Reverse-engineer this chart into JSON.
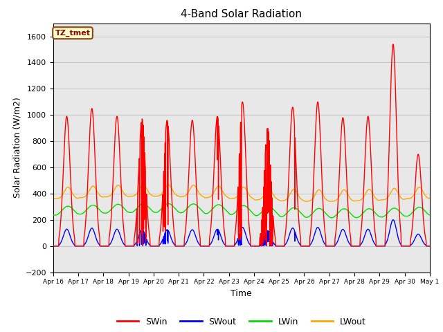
{
  "title": "4-Band Solar Radiation",
  "xlabel": "Time",
  "ylabel": "Solar Radiation (W/m2)",
  "annotation_text": "TZ_tmet",
  "annotation_facecolor": "#ffffcc",
  "annotation_edgecolor": "#8B4513",
  "annotation_textcolor": "#8B0000",
  "ylim": [
    -200,
    1700
  ],
  "xlim": [
    0,
    360
  ],
  "grid_color": "#c8c8c8",
  "background_color": "#ffffff",
  "plot_bg_color": "#e8e8e8",
  "series": {
    "SWin": {
      "color": "#ff0000",
      "linewidth": 1.0
    },
    "SWout": {
      "color": "#0000ff",
      "linewidth": 1.0
    },
    "LWin": {
      "color": "#00dd00",
      "linewidth": 1.0
    },
    "LWout": {
      "color": "#ffa500",
      "linewidth": 1.0
    }
  },
  "x_tick_labels": [
    "Apr 16",
    "Apr 17",
    "Apr 18",
    "Apr 19",
    "Apr 20",
    "Apr 21",
    "Apr 22",
    "Apr 23",
    "Apr 24",
    "Apr 25",
    "Apr 26",
    "Apr 27",
    "Apr 28",
    "Apr 29",
    "Apr 30",
    "May 1"
  ],
  "x_tick_positions": [
    0,
    24,
    48,
    72,
    96,
    120,
    144,
    168,
    192,
    216,
    240,
    264,
    288,
    312,
    336,
    360
  ],
  "hours_total": 360,
  "resolution": 4,
  "peak_vals": [
    990,
    1050,
    990,
    970,
    960,
    960,
    990,
    1100,
    900,
    1060,
    1100,
    980,
    990,
    1540,
    700
  ],
  "lwin_base": 270,
  "lwin_amp": 35,
  "lwout_base": 360,
  "lwout_amp": 90
}
